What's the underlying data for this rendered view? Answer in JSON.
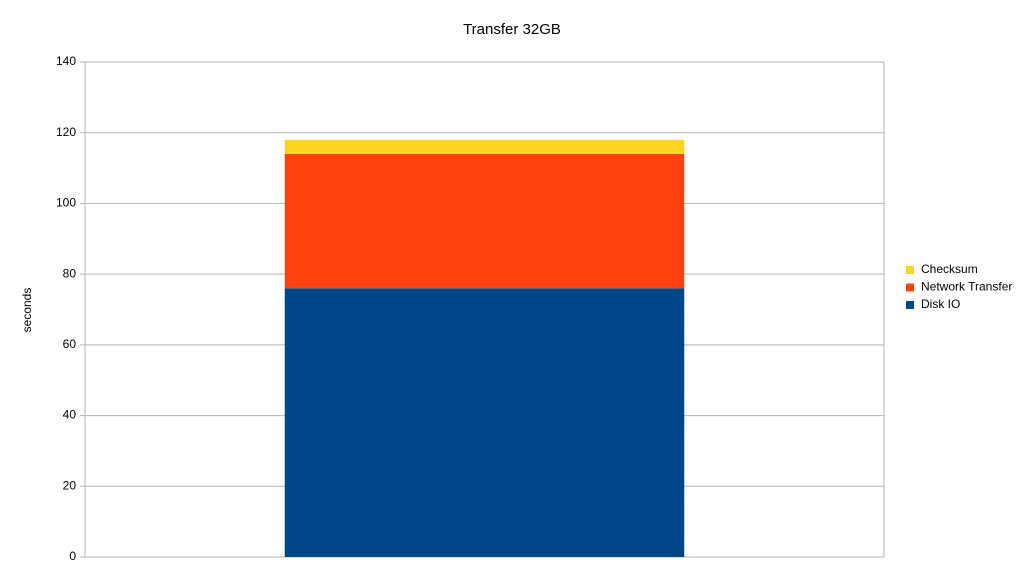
{
  "chart_data": {
    "type": "stacked_bar",
    "title": "Transfer 32GB",
    "y_label": "seconds",
    "categories": [
      null
    ],
    "series": [
      {
        "name": "Disk IO",
        "color": "#004586",
        "values": [
          76
        ]
      },
      {
        "name": "Network Transfer",
        "color": "#ff420e",
        "values": [
          38
        ]
      },
      {
        "name": "Checksum",
        "color": "#ffd320",
        "values": [
          4
        ]
      }
    ],
    "ylim": [
      0,
      140
    ],
    "yticks": [
      0,
      20,
      40,
      60,
      80,
      100,
      120,
      140
    ],
    "grid": true,
    "legend": "right"
  }
}
